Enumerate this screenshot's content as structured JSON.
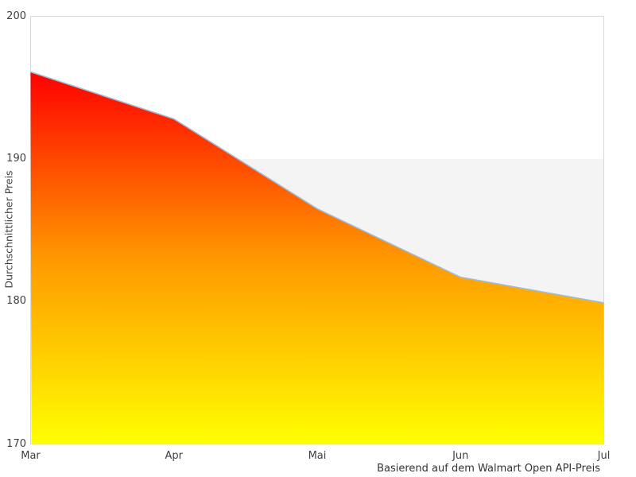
{
  "chart_data": {
    "type": "area",
    "categories": [
      "Mar",
      "Apr",
      "Mai",
      "Jun",
      "Jul"
    ],
    "values": [
      196.1,
      192.8,
      186.5,
      181.7,
      179.9
    ],
    "title": "",
    "xlabel": "",
    "ylabel": "Durchschnittlicher Preis",
    "caption": "Basierend auf dem Walmart Open API-Preis",
    "ylim": [
      170,
      200
    ],
    "y_ticks": [
      170,
      180,
      190,
      200
    ],
    "grid": "off",
    "legend": "none",
    "grid_band": {
      "from": 180,
      "to": 190,
      "color": "#f4f4f4"
    },
    "colors": {
      "gradient_top": "#ff0000",
      "gradient_mid": "#ff9800",
      "gradient_bottom": "#ffff00",
      "line": "#9fbcd8",
      "frame": "#d8d8d8",
      "tick_text": "#404040",
      "caption_text": "#333333",
      "background": "#ffffff"
    }
  }
}
